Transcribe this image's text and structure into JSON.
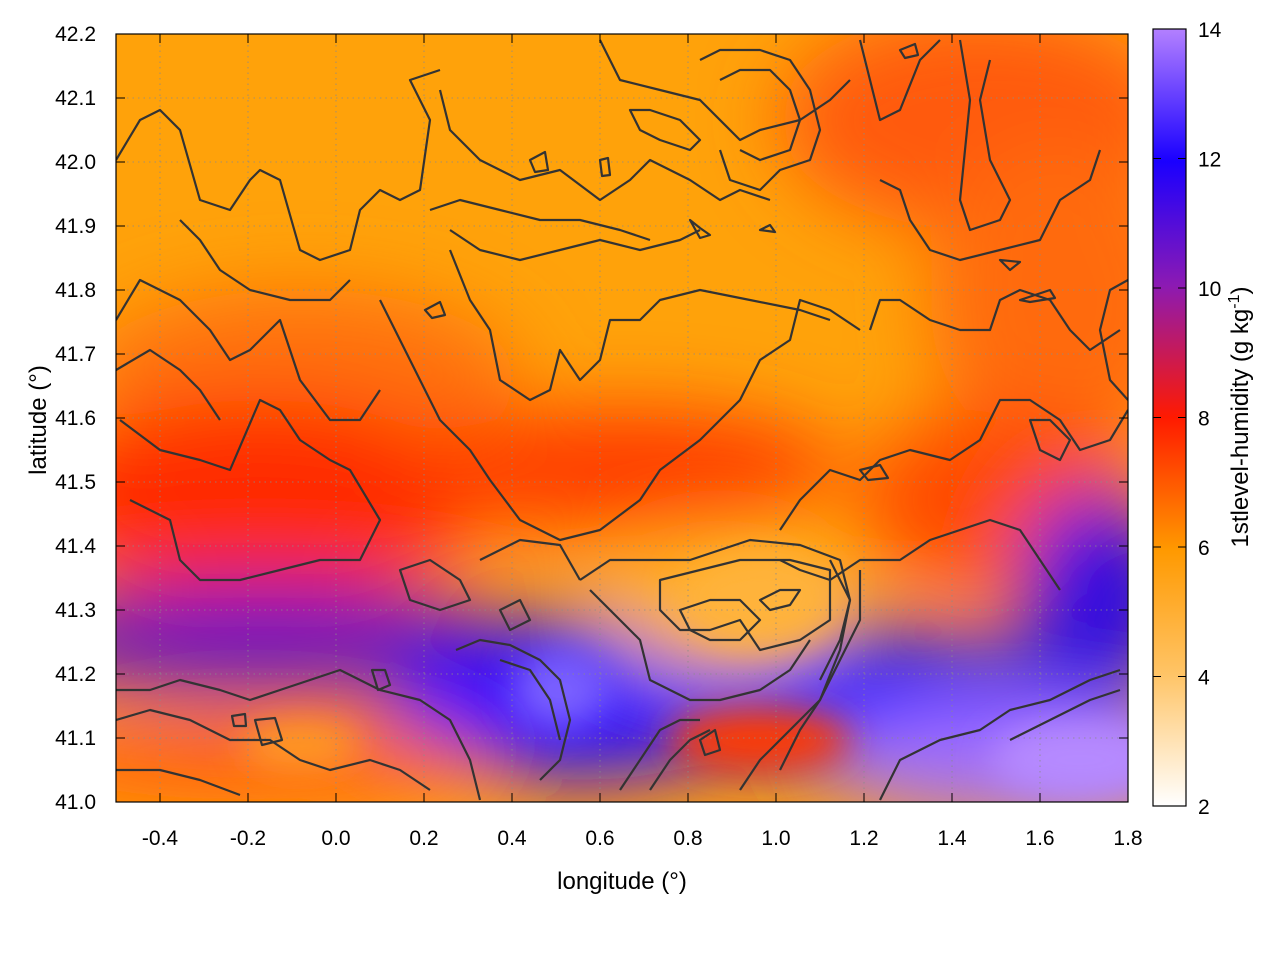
{
  "chart_data": {
    "type": "heatmap",
    "title": "",
    "xlabel": "longitude (°)",
    "ylabel": "latitude (°)",
    "xlim": [
      -0.5,
      1.8
    ],
    "ylim": [
      41.0,
      42.2
    ],
    "xticks": [
      "-0.4",
      "-0.2",
      "0.0",
      "0.2",
      "0.4",
      "0.6",
      "0.8",
      "1.0",
      "1.2",
      "1.4",
      "1.6",
      "1.8"
    ],
    "yticks": [
      "41.0",
      "41.1",
      "41.2",
      "41.3",
      "41.4",
      "41.5",
      "41.6",
      "41.7",
      "41.8",
      "41.9",
      "42.0",
      "42.1",
      "42.2"
    ],
    "grid": true,
    "colorbar": {
      "label_main": "1stlevel-humidity (g kg",
      "label_sup": "-1",
      "label_end": ")",
      "range": [
        2,
        14
      ],
      "ticks": [
        "2",
        "4",
        "6",
        "8",
        "10",
        "12",
        "14"
      ],
      "colormap": [
        "#ffffff",
        "#ffc466",
        "#ff9900",
        "#ff1a00",
        "#8c1ab3",
        "#1a00ff",
        "#b380ff"
      ]
    },
    "contours": "dark grey terrain contour lines overlaid"
  }
}
